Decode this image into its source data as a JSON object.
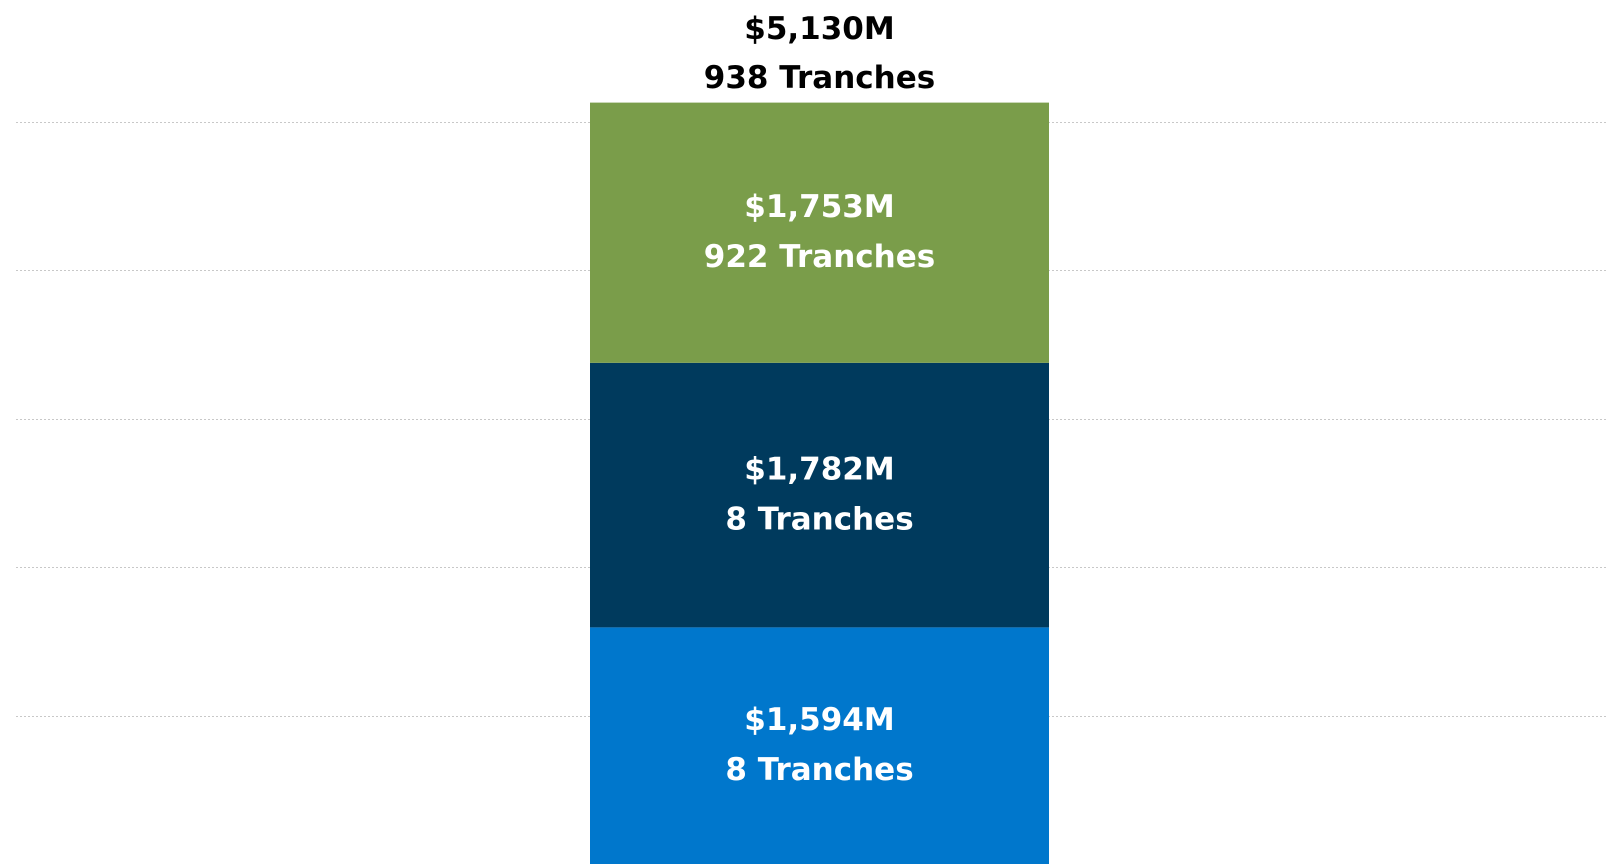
{
  "chart_data": {
    "type": "stacked_bar",
    "categories": [
      null
    ],
    "series": [
      {
        "color": "#0077cc",
        "values": [
          1594
        ],
        "value_labels": [
          "$1,594M"
        ],
        "tranche_labels": [
          "8 Tranches"
        ]
      },
      {
        "color": "#003a5d",
        "values": [
          1782
        ],
        "value_labels": [
          "$1,782M"
        ],
        "tranche_labels": [
          "8 Tranches"
        ]
      },
      {
        "color": "#7a9d4a",
        "values": [
          1753
        ],
        "value_labels": [
          "$1,753M"
        ],
        "tranche_labels": [
          "922 Tranches"
        ]
      }
    ],
    "total": 5130,
    "total_label": "$5,130M",
    "total_tranche_label": "938 Tranches",
    "ylim": [
      0,
      5800
    ],
    "yticks": [
      1000,
      2000,
      3000,
      4000,
      5000
    ],
    "grid": true
  }
}
